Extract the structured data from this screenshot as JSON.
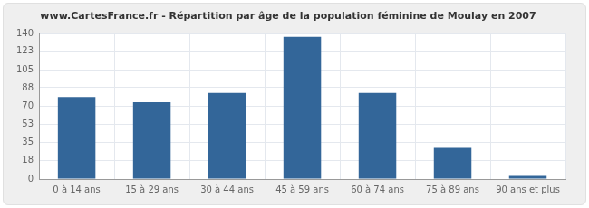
{
  "chart_data": {
    "type": "bar",
    "title": "www.CartesFrance.fr - Répartition par âge de la population féminine de Moulay en 2007",
    "categories": [
      "0 à 14 ans",
      "15 à 29 ans",
      "30 à 44 ans",
      "45 à 59 ans",
      "60 à 74 ans",
      "75 à 89 ans",
      "90 ans et plus"
    ],
    "values": [
      79,
      74,
      83,
      137,
      83,
      30,
      3
    ],
    "color": "#336699",
    "ylim": [
      0,
      140
    ],
    "yticks": [
      0,
      18,
      35,
      53,
      70,
      88,
      105,
      123,
      140
    ],
    "grid": true
  }
}
